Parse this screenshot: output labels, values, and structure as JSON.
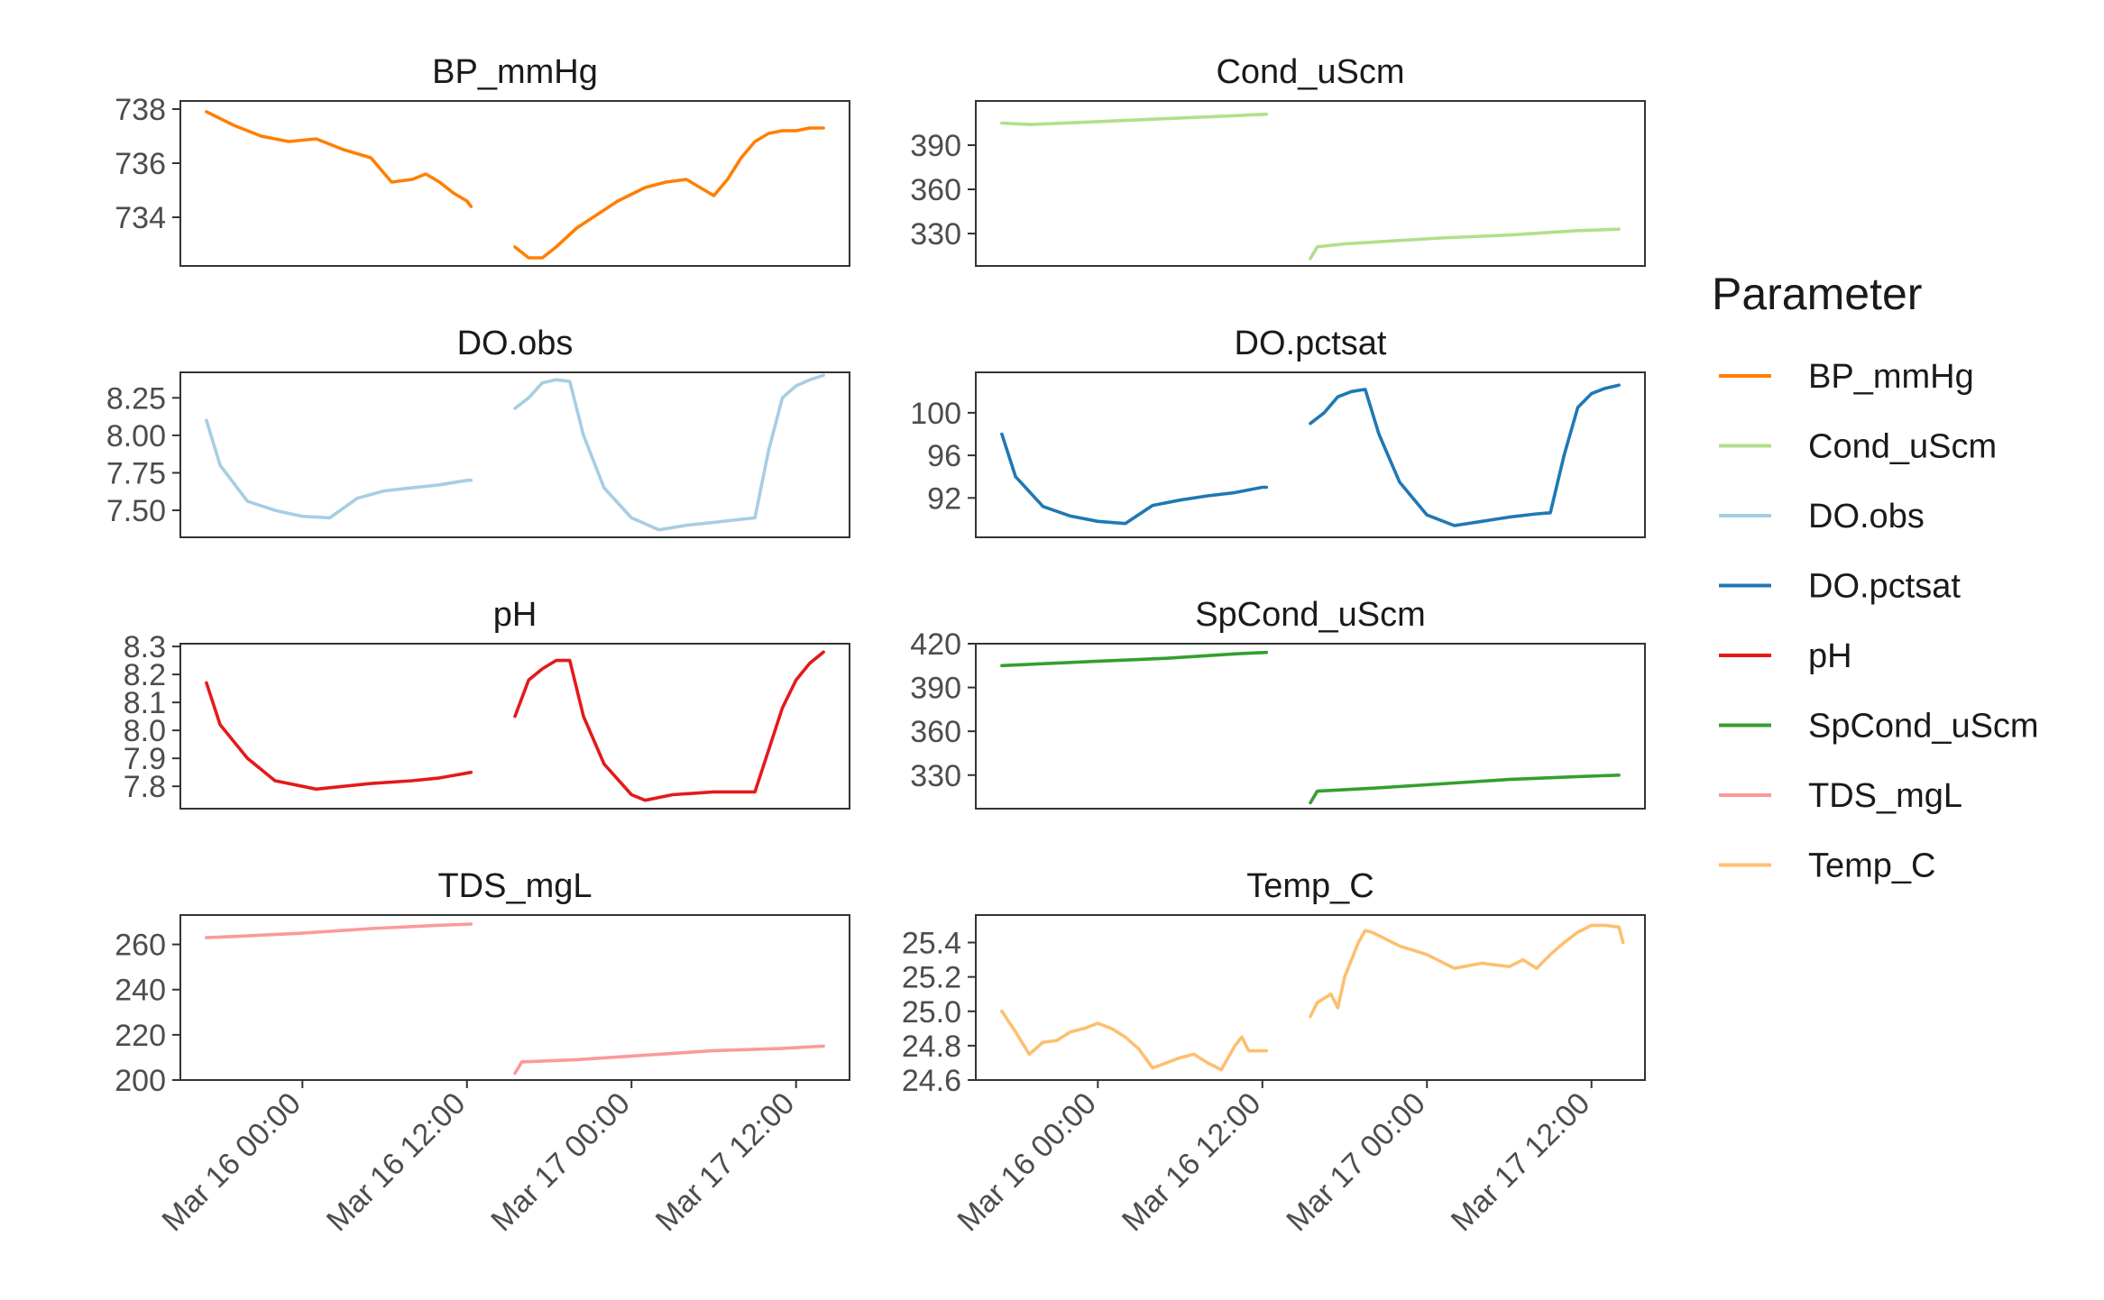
{
  "chart_data": {
    "type": "line",
    "facets": [
      {
        "title": "BP_mmHg",
        "color": "#FF7F00",
        "ylim": [
          732.2,
          738.3
        ],
        "yticks": [
          734,
          736,
          738
        ],
        "yticklabels": [
          "734",
          "736",
          "738"
        ],
        "segments": [
          [
            [
              -7,
              737.9
            ],
            [
              -5,
              737.4
            ],
            [
              -3,
              737.0
            ],
            [
              -1,
              736.8
            ],
            [
              1,
              736.9
            ],
            [
              3,
              736.5
            ],
            [
              5,
              736.2
            ],
            [
              6.5,
              735.3
            ],
            [
              8,
              735.4
            ],
            [
              9,
              735.6
            ],
            [
              10,
              735.3
            ],
            [
              11,
              734.9
            ],
            [
              12,
              734.6
            ],
            [
              12.3,
              734.4
            ]
          ],
          [
            [
              15.5,
              732.9
            ],
            [
              16.5,
              732.5
            ],
            [
              17.5,
              732.5
            ],
            [
              18.5,
              732.9
            ],
            [
              20,
              733.6
            ],
            [
              21.5,
              734.1
            ],
            [
              23,
              734.6
            ],
            [
              25,
              735.1
            ],
            [
              26.5,
              735.3
            ],
            [
              28,
              735.4
            ],
            [
              29,
              735.1
            ],
            [
              30,
              734.8
            ],
            [
              31,
              735.4
            ],
            [
              32,
              736.2
            ],
            [
              33,
              736.8
            ],
            [
              34,
              737.1
            ],
            [
              35,
              737.2
            ],
            [
              36,
              737.2
            ],
            [
              37,
              737.3
            ],
            [
              38,
              737.3
            ]
          ]
        ]
      },
      {
        "title": "Cond_uScm",
        "color": "#B2DF8A",
        "ylim": [
          308,
          420
        ],
        "yticks": [
          330,
          360,
          390
        ],
        "yticklabels": [
          "330",
          "360",
          "390"
        ],
        "segments": [
          [
            [
              -7,
              405
            ],
            [
              -5,
              404
            ],
            [
              0,
              406
            ],
            [
              5,
              408
            ],
            [
              10,
              410
            ],
            [
              12.3,
              411
            ]
          ],
          [
            [
              15.5,
              313
            ],
            [
              16,
              321
            ],
            [
              18,
              323
            ],
            [
              25,
              327
            ],
            [
              30,
              329
            ],
            [
              35,
              332
            ],
            [
              38,
              333
            ]
          ]
        ]
      },
      {
        "title": "DO.obs",
        "color": "#A6CEE3",
        "ylim": [
          7.32,
          8.42
        ],
        "yticks": [
          7.5,
          7.75,
          8.0,
          8.25
        ],
        "yticklabels": [
          "7.50",
          "7.75",
          "8.00",
          "8.25"
        ],
        "segments": [
          [
            [
              -7,
              8.1
            ],
            [
              -6,
              7.8
            ],
            [
              -4,
              7.56
            ],
            [
              -2,
              7.5
            ],
            [
              0,
              7.46
            ],
            [
              2,
              7.45
            ],
            [
              4,
              7.58
            ],
            [
              6,
              7.63
            ],
            [
              8,
              7.65
            ],
            [
              10,
              7.67
            ],
            [
              12,
              7.7
            ],
            [
              12.3,
              7.7
            ]
          ],
          [
            [
              15.5,
              8.18
            ],
            [
              16.5,
              8.25
            ],
            [
              17.5,
              8.35
            ],
            [
              18.5,
              8.37
            ],
            [
              19.5,
              8.36
            ],
            [
              20.5,
              8.0
            ],
            [
              22,
              7.65
            ],
            [
              24,
              7.45
            ],
            [
              26,
              7.37
            ],
            [
              28,
              7.4
            ],
            [
              30,
              7.42
            ],
            [
              32,
              7.44
            ],
            [
              33,
              7.45
            ],
            [
              34,
              7.9
            ],
            [
              35,
              8.25
            ],
            [
              36,
              8.33
            ],
            [
              37,
              8.37
            ],
            [
              38,
              8.4
            ]
          ]
        ]
      },
      {
        "title": "DO.pctsat",
        "color": "#1F78B4",
        "ylim": [
          88.3,
          103.8
        ],
        "yticks": [
          92,
          96,
          100
        ],
        "yticklabels": [
          "92",
          "96",
          "100"
        ],
        "segments": [
          [
            [
              -7,
              98
            ],
            [
              -6,
              94
            ],
            [
              -4,
              91.2
            ],
            [
              -2,
              90.3
            ],
            [
              0,
              89.8
            ],
            [
              2,
              89.6
            ],
            [
              4,
              91.3
            ],
            [
              6,
              91.8
            ],
            [
              8,
              92.2
            ],
            [
              10,
              92.5
            ],
            [
              12,
              93
            ],
            [
              12.3,
              93
            ]
          ],
          [
            [
              15.5,
              99
            ],
            [
              16.5,
              100
            ],
            [
              17.5,
              101.5
            ],
            [
              18.5,
              102
            ],
            [
              19.5,
              102.2
            ],
            [
              20.5,
              98
            ],
            [
              22,
              93.5
            ],
            [
              24,
              90.4
            ],
            [
              26,
              89.4
            ],
            [
              28,
              89.8
            ],
            [
              30,
              90.2
            ],
            [
              32,
              90.5
            ],
            [
              33,
              90.6
            ],
            [
              34,
              96
            ],
            [
              35,
              100.5
            ],
            [
              36,
              101.8
            ],
            [
              37,
              102.3
            ],
            [
              38,
              102.6
            ]
          ]
        ]
      },
      {
        "title": "pH",
        "color": "#E31A1C",
        "ylim": [
          7.72,
          8.31
        ],
        "yticks": [
          7.8,
          7.9,
          8.0,
          8.1,
          8.2,
          8.3
        ],
        "yticklabels": [
          "7.8",
          "7.9",
          "8.0",
          "8.1",
          "8.2",
          "8.3"
        ],
        "segments": [
          [
            [
              -7,
              8.17
            ],
            [
              -6,
              8.02
            ],
            [
              -4,
              7.9
            ],
            [
              -2,
              7.82
            ],
            [
              0,
              7.8
            ],
            [
              1,
              7.79
            ],
            [
              3,
              7.8
            ],
            [
              5,
              7.81
            ],
            [
              8,
              7.82
            ],
            [
              10,
              7.83
            ],
            [
              12.3,
              7.85
            ]
          ],
          [
            [
              15.5,
              8.05
            ],
            [
              16.5,
              8.18
            ],
            [
              17.5,
              8.22
            ],
            [
              18.5,
              8.25
            ],
            [
              19.5,
              8.25
            ],
            [
              20.5,
              8.05
            ],
            [
              22,
              7.88
            ],
            [
              24,
              7.77
            ],
            [
              25,
              7.75
            ],
            [
              27,
              7.77
            ],
            [
              30,
              7.78
            ],
            [
              32,
              7.78
            ],
            [
              33,
              7.78
            ],
            [
              34,
              7.93
            ],
            [
              35,
              8.08
            ],
            [
              36,
              8.18
            ],
            [
              37,
              8.24
            ],
            [
              38,
              8.28
            ]
          ]
        ]
      },
      {
        "title": "SpCond_uScm",
        "color": "#33A02C",
        "ylim": [
          307,
          420
        ],
        "yticks": [
          330,
          360,
          390,
          420
        ],
        "yticklabels": [
          "330",
          "360",
          "390",
          "420"
        ],
        "segments": [
          [
            [
              -7,
              405
            ],
            [
              0,
              408
            ],
            [
              5,
              410
            ],
            [
              10,
              413
            ],
            [
              12.3,
              414
            ]
          ],
          [
            [
              15.5,
              311
            ],
            [
              16,
              319
            ],
            [
              20,
              321
            ],
            [
              25,
              324
            ],
            [
              30,
              327
            ],
            [
              35,
              329
            ],
            [
              38,
              330
            ]
          ]
        ]
      },
      {
        "title": "TDS_mgL",
        "color": "#FB9A99",
        "ylim": [
          200,
          273
        ],
        "yticks": [
          200,
          220,
          240,
          260
        ],
        "yticklabels": [
          "200",
          "220",
          "240",
          "260"
        ],
        "segments": [
          [
            [
              -7,
              263
            ],
            [
              -5,
              263.5
            ],
            [
              0,
              265
            ],
            [
              5,
              267
            ],
            [
              10,
              268.5
            ],
            [
              12.3,
              269
            ]
          ],
          [
            [
              15.5,
              203
            ],
            [
              16,
              208
            ],
            [
              20,
              209
            ],
            [
              25,
              211
            ],
            [
              30,
              213
            ],
            [
              35,
              214
            ],
            [
              38,
              215
            ]
          ]
        ]
      },
      {
        "title": "Temp_C",
        "color": "#FDBF6F",
        "ylim": [
          24.6,
          25.56
        ],
        "yticks": [
          24.6,
          24.8,
          25.0,
          25.2,
          25.4
        ],
        "yticklabels": [
          "24.6",
          "24.8",
          "25.0",
          "25.2",
          "25.4"
        ],
        "segments": [
          [
            [
              -7,
              25.0
            ],
            [
              -6,
              24.88
            ],
            [
              -5,
              24.75
            ],
            [
              -4,
              24.82
            ],
            [
              -3,
              24.83
            ],
            [
              -2,
              24.88
            ],
            [
              -1,
              24.9
            ],
            [
              0,
              24.93
            ],
            [
              1,
              24.9
            ],
            [
              2,
              24.85
            ],
            [
              3,
              24.78
            ],
            [
              4,
              24.67
            ],
            [
              5,
              24.7
            ],
            [
              6,
              24.73
            ],
            [
              7,
              24.75
            ],
            [
              8,
              24.7
            ],
            [
              9,
              24.66
            ],
            [
              10,
              24.8
            ],
            [
              10.5,
              24.85
            ],
            [
              11,
              24.77
            ],
            [
              12.3,
              24.77
            ]
          ],
          [
            [
              15.5,
              24.97
            ],
            [
              16,
              25.05
            ],
            [
              17,
              25.1
            ],
            [
              17.5,
              25.02
            ],
            [
              18,
              25.2
            ],
            [
              19,
              25.4
            ],
            [
              19.5,
              25.47
            ],
            [
              20,
              25.46
            ],
            [
              22,
              25.38
            ],
            [
              24,
              25.33
            ],
            [
              26,
              25.25
            ],
            [
              28,
              25.28
            ],
            [
              30,
              25.26
            ],
            [
              31,
              25.3
            ],
            [
              32,
              25.25
            ],
            [
              33,
              25.33
            ],
            [
              34,
              25.4
            ],
            [
              35,
              25.46
            ],
            [
              36,
              25.5
            ],
            [
              37,
              25.5
            ],
            [
              38,
              25.49
            ],
            [
              38.3,
              25.4
            ]
          ]
        ]
      }
    ],
    "x_unit": "hours_since_Mar_16_00:00",
    "xlim": [
      -8.9,
      39.9
    ],
    "xticks": [
      0,
      12,
      24,
      36
    ],
    "xticklabels": [
      "Mar 16 00:00",
      "Mar 16 12:00",
      "Mar 17 00:00",
      "Mar 17 12:00"
    ],
    "legend": {
      "title": "Parameter",
      "position": "right",
      "entries": [
        {
          "label": "BP_mmHg",
          "color": "#FF7F00"
        },
        {
          "label": "Cond_uScm",
          "color": "#B2DF8A"
        },
        {
          "label": "DO.obs",
          "color": "#A6CEE3"
        },
        {
          "label": "DO.pctsat",
          "color": "#1F78B4"
        },
        {
          "label": "pH",
          "color": "#E31A1C"
        },
        {
          "label": "SpCond_uScm",
          "color": "#33A02C"
        },
        {
          "label": "TDS_mgL",
          "color": "#FB9A99"
        },
        {
          "label": "Temp_C",
          "color": "#FDBF6F"
        }
      ]
    }
  }
}
